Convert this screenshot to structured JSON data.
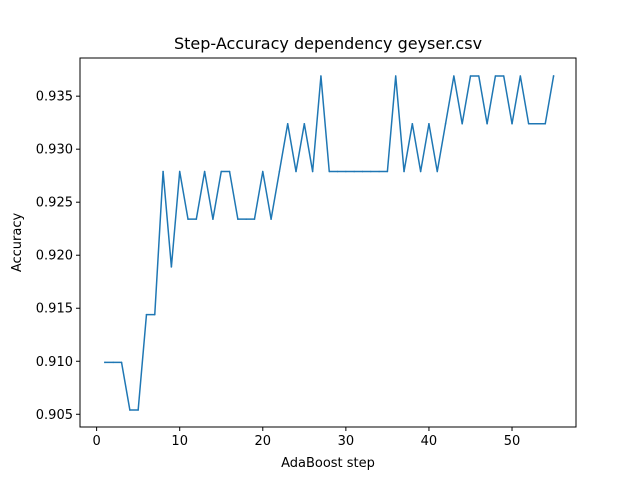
{
  "chart_data": {
    "type": "line",
    "title": "Step-Accuracy dependency geyser.csv",
    "xlabel": "AdaBoost step",
    "ylabel": "Accuracy",
    "xlim": [
      -2,
      57.7
    ],
    "ylim": [
      0.9038,
      0.9386
    ],
    "xticks": [
      0,
      10,
      20,
      30,
      40,
      50
    ],
    "yticks": [
      0.905,
      0.91,
      0.915,
      0.92,
      0.925,
      0.93,
      0.935
    ],
    "ytick_labels": [
      "0.905",
      "0.910",
      "0.915",
      "0.920",
      "0.925",
      "0.930",
      "0.935"
    ],
    "grid": false,
    "legend": false,
    "color": "#1f77b4",
    "series": [
      {
        "x": [
          1,
          2,
          3,
          4,
          5,
          6,
          7,
          8,
          9,
          10,
          11,
          12,
          13,
          14,
          15,
          16,
          17,
          18,
          19,
          20,
          21,
          22,
          23,
          24,
          25,
          26,
          27,
          28,
          29,
          30,
          31,
          32,
          33,
          34,
          35,
          36,
          37,
          38,
          39,
          40,
          41,
          42,
          43,
          44,
          45,
          46,
          47,
          48,
          49,
          50,
          51,
          52,
          53,
          54,
          55
        ],
        "values": [
          0.9099,
          0.9099,
          0.9099,
          0.9054,
          0.9054,
          0.9144,
          0.9144,
          0.9279,
          0.9189,
          0.9279,
          0.9234,
          0.9234,
          0.9279,
          0.9234,
          0.9279,
          0.9279,
          0.9234,
          0.9234,
          0.9234,
          0.9279,
          0.9234,
          0.9279,
          0.9324,
          0.9279,
          0.9324,
          0.9279,
          0.9369,
          0.9279,
          0.9279,
          0.9279,
          0.9279,
          0.9279,
          0.9279,
          0.9279,
          0.9279,
          0.9369,
          0.9279,
          0.9324,
          0.9279,
          0.9324,
          0.9279,
          0.9324,
          0.9369,
          0.9324,
          0.9369,
          0.9369,
          0.9324,
          0.9369,
          0.9369,
          0.9324,
          0.9369,
          0.9324,
          0.9324,
          0.9324,
          0.9369
        ]
      }
    ]
  }
}
